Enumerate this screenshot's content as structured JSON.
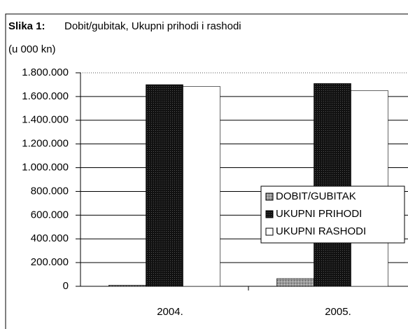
{
  "chart_data": {
    "type": "bar",
    "figure_label": "Slika 1:",
    "title": "Dobit/gubitak, Ukupni prihodi i rashodi",
    "subtitle": "(u 000 kn)",
    "categories": [
      "2004.",
      "2005."
    ],
    "series": [
      {
        "name": "DOBIT/GUBITAK",
        "color": "#8a8a8a",
        "values": [
          10000,
          65000
        ]
      },
      {
        "name": "UKUPNI PRIHODI",
        "color": "#111111",
        "values": [
          1700000,
          1710000
        ]
      },
      {
        "name": "UKUPNI RASHODI",
        "color": "#ffffff",
        "values": [
          1685000,
          1650000
        ]
      }
    ],
    "ylim": [
      0,
      1800000
    ],
    "yticks": [
      0,
      {
        "value": 200000,
        "label": "200.000"
      },
      {
        "value": 400000,
        "label": "400.000"
      },
      {
        "value": 600000,
        "label": "600.000"
      },
      {
        "value": 800000,
        "label": "800.000"
      },
      {
        "value": 1000000,
        "label": "1.000.000"
      },
      {
        "value": 1200000,
        "label": "1.200.000"
      },
      {
        "value": 1400000,
        "label": "1.400.000"
      },
      {
        "value": 1600000,
        "label": "1.600.000"
      },
      {
        "value": 1800000,
        "label": "1.800.000"
      }
    ],
    "grid": true,
    "legend": "right"
  }
}
